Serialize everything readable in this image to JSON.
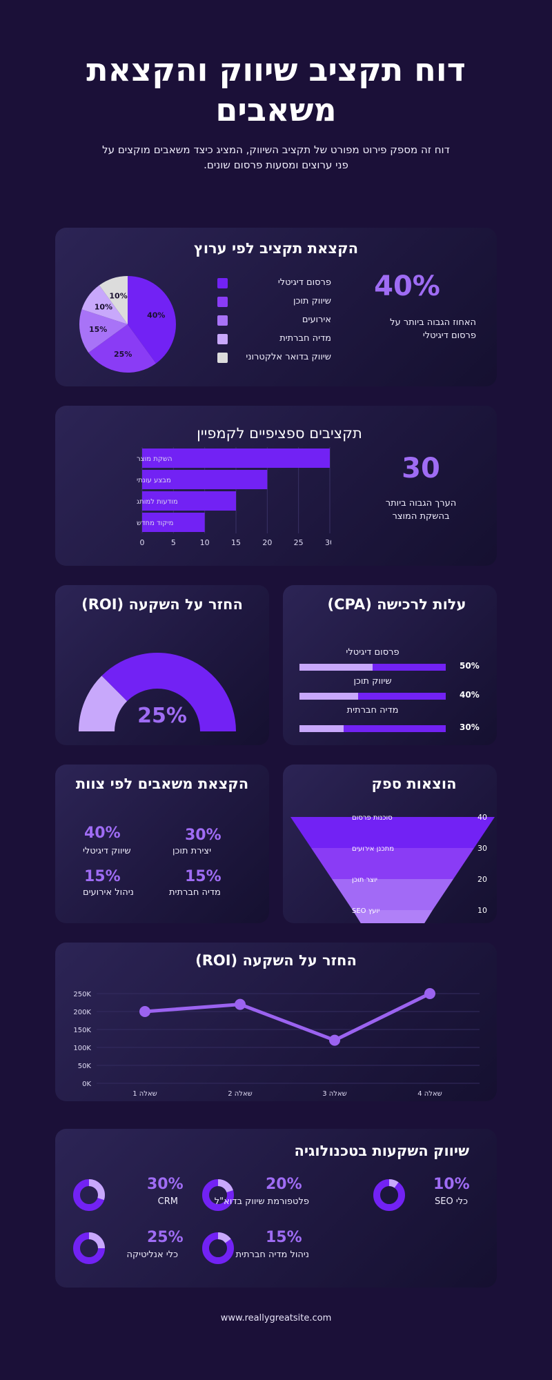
{
  "header": {
    "title": "דוח תקציב שיווק והקצאת משאבים",
    "subtitle": "דוח זה מספק פירוט מפורט של תקציב השיווק, המציג כיצד משאבים מוקצים על פני ערוצים ומסעות פרסום שונים."
  },
  "channel_budget": {
    "title": "הקצאת תקציב לפי ערוץ",
    "highlight_value": "40%",
    "highlight_note": "האחוז הגבוה ביותר על פרסום דיגיטלי",
    "chart_data": {
      "type": "pie",
      "slices": [
        {
          "label": "פרסום דיגיטלי",
          "value": 40,
          "display": "40%",
          "color": "#7222f4"
        },
        {
          "label": "שיווק תוכן",
          "value": 25,
          "display": "25%",
          "color": "#8a3cf5"
        },
        {
          "label": "אירועים",
          "value": 15,
          "display": "15%",
          "color": "#a873f7"
        },
        {
          "label": "מדיה חברתית",
          "value": 10,
          "display": "10%",
          "color": "#c8a8fb"
        },
        {
          "label": "שיווק בדואר אלקטרוני",
          "value": 10,
          "display": "10%",
          "color": "#dcdcdc"
        }
      ]
    }
  },
  "campaign_budget": {
    "title": "תקציבים ספציפיים לקמפיין",
    "highlight_value": "30",
    "highlight_note": "הערך הגבוה ביותר בהשקת המוצר",
    "chart_data": {
      "type": "bar",
      "orientation": "horizontal",
      "categories": [
        "השקת מוצר",
        "מבצע עונתי",
        "מודעות למותג",
        "מיקוד מחדש"
      ],
      "values": [
        30,
        20,
        15,
        10
      ],
      "xlim": [
        0,
        30
      ],
      "xticks": [
        "0",
        "5",
        "10",
        "15",
        "20",
        "25",
        "30"
      ],
      "color": "#7222f4"
    }
  },
  "roi_gauge": {
    "title": "החזר על השקעה (ROI)",
    "value_label": "25%",
    "chart_data": {
      "type": "gauge",
      "value": 25,
      "max": 100
    }
  },
  "cpa": {
    "title": "עלות לרכישה (CPA)",
    "chart_data": {
      "type": "bar",
      "items": [
        {
          "label": "פרסום דיגיטלי",
          "value": 50,
          "display": "50%"
        },
        {
          "label": "שיווק תוכן",
          "value": 40,
          "display": "40%"
        },
        {
          "label": "מדיה חברתית",
          "value": 30,
          "display": "30%"
        }
      ]
    }
  },
  "teams": {
    "title": "הקצאת משאבים לפי צוות",
    "items": [
      {
        "label": "יצירת תוכן",
        "value": "30%"
      },
      {
        "label": "שיווק דיגיטלי",
        "value": "40%"
      },
      {
        "label": "מדיה חברתית",
        "value": "15%"
      },
      {
        "label": "ניהול אירועים",
        "value": "15%"
      }
    ]
  },
  "vendors": {
    "title": "הוצאות ספק",
    "chart_data": {
      "type": "funnel",
      "stages": [
        {
          "label": "סוכנות פרסום",
          "value": 40,
          "display": "40"
        },
        {
          "label": "מתכנן אירועים",
          "value": 30,
          "display": "30"
        },
        {
          "label": "יוצר תוכן",
          "value": 20,
          "display": "20"
        },
        {
          "label": "יועץ SEO",
          "value": 10,
          "display": "10"
        }
      ]
    }
  },
  "roi_line": {
    "title": "החזר על השקעה (ROI)",
    "chart_data": {
      "type": "line",
      "categories": [
        "שאלה 1",
        "שאלה 2",
        "שאלה 3",
        "שאלה 4"
      ],
      "values": [
        200000,
        220000,
        120000,
        250000
      ],
      "ylim": [
        0,
        250000
      ],
      "yticks": [
        "0K",
        "50K",
        "100K",
        "150K",
        "200K",
        "250K"
      ],
      "color": "#9b63f0"
    }
  },
  "tech": {
    "title": "שיווק השקעות בטכנולוגיה",
    "items": [
      {
        "label": "כלי SEO",
        "value": 10,
        "display": "10%"
      },
      {
        "label": "פלטפורמת שיווק בדוא\"ל",
        "value": 20,
        "display": "20%"
      },
      {
        "label": "CRM",
        "value": 30,
        "display": "30%"
      },
      {
        "label": "ניהול מדיה חברתית",
        "value": 15,
        "display": "15%"
      },
      {
        "label": "כלי אנליטיקה",
        "value": 25,
        "display": "25%"
      }
    ]
  },
  "footer": {
    "url": "www.reallygreatsite.com"
  },
  "colors": {
    "background": "#1b1038",
    "accent": "#9f6cf4",
    "bar": "#7222f4",
    "light": "#c8a8fb"
  }
}
